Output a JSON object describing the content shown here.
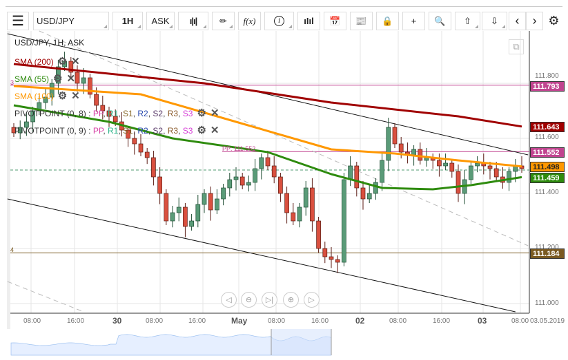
{
  "toolbar": {
    "symbol": "USD/JPY",
    "timeframe": "1H",
    "price_type": "ASK",
    "icons": [
      "menu-icon",
      "candle-type-icon",
      "draw-icon",
      "function-icon",
      "info-icon",
      "volume-icon",
      "calendar-icon",
      "news-icon",
      "lock-icon",
      "crosshair-icon",
      "zoom-search-icon",
      "cloud-upload-icon",
      "cloud-download-icon",
      "chevron-left-icon",
      "chevron-right-icon",
      "gear-icon"
    ],
    "fx_label": "f(x)"
  },
  "legend": {
    "title": "USD/JPY, 1H, ASK",
    "sma200": "SMA (200)",
    "sma55": "SMA (55)",
    "sma100": "SMA (100)",
    "pivot1": "PIVOTPOINT (0, 8)",
    "pivot2": "PIVOTPOINT (0, 9)",
    "sep": ":",
    "pp": "PP",
    "r1": "R1",
    "s1": "S1",
    "r2": "R2",
    "s2": "S2",
    "r3": "R3",
    "s3": "S3",
    "comma": ","
  },
  "colors": {
    "sma200": "#a00000",
    "sma55": "#2e8b0e",
    "sma100": "#ff9800",
    "pivot": "#c0448f",
    "brown": "#7a5a22",
    "up": "#5a9b78",
    "down": "#d9503f"
  },
  "markers": {
    "three": "3",
    "four": "4",
    "pp_line": "PP: 111.552"
  },
  "price_labels": {
    "p1": "111.793",
    "p2": "111.643",
    "p3": "111.552",
    "p4": "111.498",
    "p5": "111.459",
    "p6": "111.184"
  },
  "y_axis": [
    "111.800",
    "111.600",
    "111.400",
    "111.200",
    "111.000"
  ],
  "x_axis": [
    "08:00",
    "16:00",
    "30",
    "08:00",
    "16:00",
    "May",
    "08:00",
    "16:00",
    "02",
    "08:00",
    "16:00",
    "03",
    "08:00",
    "03.05.2019"
  ],
  "chart_data": {
    "type": "candlestick",
    "ylim": [
      110.97,
      111.99
    ],
    "closes": [
      111.62,
      111.64,
      111.66,
      111.7,
      111.73,
      111.75,
      111.8,
      111.86,
      111.88,
      111.84,
      111.8,
      111.82,
      111.76,
      111.72,
      111.7,
      111.68,
      111.66,
      111.63,
      111.6,
      111.58,
      111.55,
      111.53,
      111.46,
      111.4,
      111.3,
      111.33,
      111.35,
      111.28,
      111.3,
      111.36,
      111.4,
      111.34,
      111.38,
      111.42,
      111.45,
      111.46,
      111.43,
      111.44,
      111.49,
      111.53,
      111.5,
      111.46,
      111.4,
      111.33,
      111.3,
      111.35,
      111.42,
      111.3,
      111.2,
      111.17,
      111.16,
      111.15,
      111.45,
      111.5,
      111.42,
      111.38,
      111.4,
      111.44,
      111.52,
      111.64,
      111.58,
      111.55,
      111.54,
      111.56,
      111.52,
      111.53,
      111.52,
      111.5,
      111.51,
      111.48,
      111.4,
      111.45,
      111.5,
      111.51,
      111.5,
      111.49,
      111.46,
      111.44,
      111.48,
      111.5,
      111.49
    ],
    "sma200": [
      [
        0,
        111.87
      ],
      [
        30,
        111.8
      ],
      [
        50,
        111.73
      ],
      [
        70,
        111.68
      ],
      [
        80,
        111.643
      ]
    ],
    "sma100": [
      [
        0,
        111.79
      ],
      [
        20,
        111.76
      ],
      [
        35,
        111.66
      ],
      [
        50,
        111.56
      ],
      [
        60,
        111.545
      ],
      [
        70,
        111.52
      ],
      [
        80,
        111.498
      ]
    ],
    "sma55": [
      [
        0,
        111.72
      ],
      [
        15,
        111.66
      ],
      [
        25,
        111.6
      ],
      [
        40,
        111.55
      ],
      [
        50,
        111.47
      ],
      [
        58,
        111.42
      ],
      [
        66,
        111.415
      ],
      [
        72,
        111.43
      ],
      [
        80,
        111.459
      ]
    ],
    "trend_upper": [
      [
        -1,
        111.98
      ],
      [
        81,
        111.54
      ]
    ],
    "trend_lower": [
      [
        -1,
        111.38
      ],
      [
        79,
        110.97
      ]
    ],
    "trend_dashed": [
      [
        4,
        111.99
      ],
      [
        81,
        111.21
      ]
    ],
    "trend_dashed2": [
      [
        -1,
        111.08
      ],
      [
        11,
        110.97
      ]
    ],
    "hlines": {
      "pivot_top": 111.793,
      "pp": 111.552,
      "brown": 111.184,
      "current": 111.485
    }
  }
}
